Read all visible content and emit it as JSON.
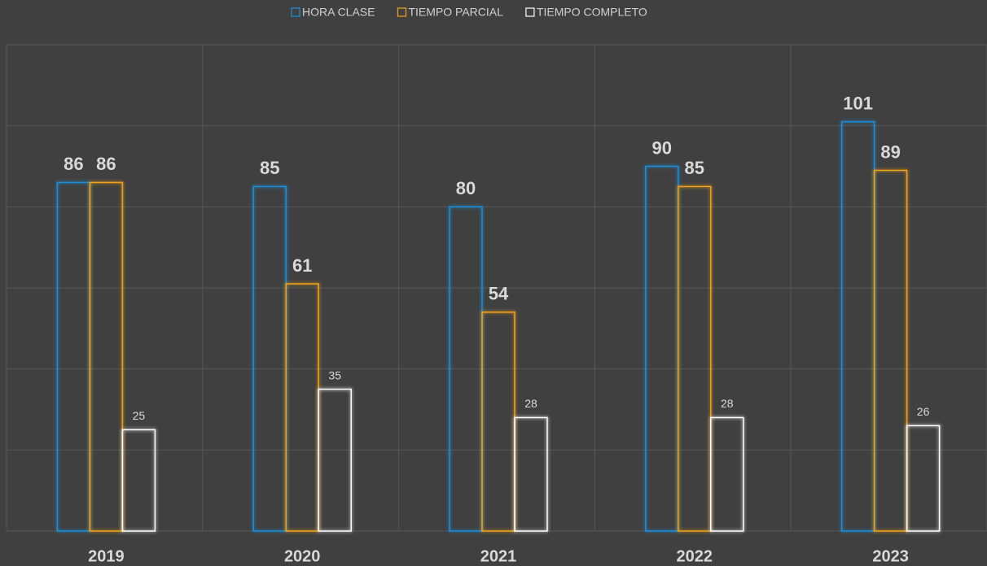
{
  "chart_data": {
    "type": "bar",
    "categories": [
      "2019",
      "2020",
      "2021",
      "2022",
      "2023"
    ],
    "series": [
      {
        "name": "HORA CLASE",
        "color": "#1b8fdc",
        "values": [
          86,
          85,
          80,
          90,
          101
        ]
      },
      {
        "name": "TIEMPO PARCIAL",
        "color": "#f2a318",
        "values": [
          86,
          61,
          54,
          85,
          89
        ]
      },
      {
        "name": "TIEMPO COMPLETO",
        "color": "#ffffff",
        "values": [
          25,
          35,
          28,
          28,
          26
        ]
      }
    ],
    "ylim": [
      0,
      120
    ],
    "yticks": [
      0,
      20,
      40,
      60,
      80,
      100,
      120
    ],
    "grid": true,
    "legend": "top"
  }
}
